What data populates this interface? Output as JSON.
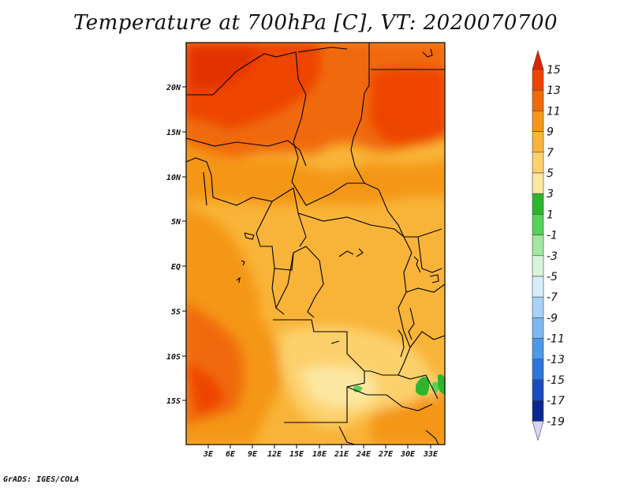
{
  "title": "Temperature at 700hPa [C], VT: 2020070700",
  "footer": "GrADS: IGES/COLA",
  "map": {
    "x_ticks": [
      "3E",
      "6E",
      "9E",
      "12E",
      "15E",
      "18E",
      "21E",
      "24E",
      "27E",
      "30E",
      "33E"
    ],
    "y_ticks": [
      "20N",
      "15N",
      "10N",
      "5N",
      "EQ",
      "5S",
      "10S",
      "15S"
    ]
  },
  "colorbar": {
    "labels": [
      "15",
      "13",
      "11",
      "9",
      "7",
      "5",
      "3",
      "1",
      "-1",
      "-3",
      "-5",
      "-7",
      "-9",
      "-11",
      "-13",
      "-15",
      "-17",
      "-19"
    ],
    "colors": [
      "#dd2200",
      "#ee4400",
      "#f06a08",
      "#f49618",
      "#f8b438",
      "#fcd06c",
      "#fce7a0",
      "#2eb52e",
      "#58d258",
      "#a0e8a0",
      "#d8f4dc",
      "#d6ecfb",
      "#a8d2f6",
      "#7cb8f0",
      "#4e98e8",
      "#2e76dc",
      "#1a4cc0",
      "#0c2890",
      "#080c5c"
    ]
  }
}
